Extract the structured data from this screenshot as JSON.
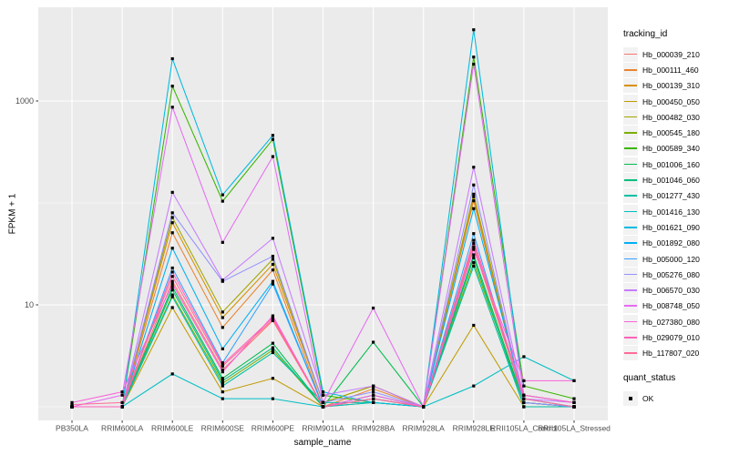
{
  "figure": {
    "background": "#FFFFFF",
    "panel_bg": "#EBEBEB",
    "grid_color": "#FFFFFF",
    "tick_color": "#333333",
    "tick_label_color": "#4D4D4D",
    "axis_title_color": "#000000",
    "legend_key_bg": "#F2F2F2",
    "point_color": "#000000"
  },
  "chart_data": {
    "type": "line",
    "title": "",
    "xlabel": "sample_name",
    "ylabel": "FPKM + 1",
    "y_scale": "log10",
    "ylim": [
      0.85,
      6000
    ],
    "grid": true,
    "legend_position": "right",
    "legend_title": "tracking_id",
    "legend2_title": "quant_status",
    "legend2_items": [
      {
        "label": "OK"
      }
    ],
    "y_ticks": [
      {
        "value": 10,
        "label": "10"
      },
      {
        "value": 1000,
        "label": "1000"
      }
    ],
    "y_minor_gridlines": [
      1,
      100
    ],
    "categories": [
      "PB350LA",
      "RRIM600LA",
      "RRIM600LE",
      "RRIM600SE",
      "RRIM600PE",
      "RRIM901LA",
      "RRIM928BA",
      "RRIM928LA",
      "RRIM928LE",
      "RRII105LA_Control",
      "RRII105LA_Stressed"
    ],
    "series": [
      {
        "name": "Hb_000039_210",
        "color": "#F8766D",
        "values": [
          1,
          1,
          17,
          2.3,
          7,
          1,
          1.3,
          1,
          37,
          1.2,
          1
        ]
      },
      {
        "name": "Hb_000111_460",
        "color": "#EA8331",
        "values": [
          1,
          1,
          51,
          6,
          22,
          1,
          1.5,
          1,
          105,
          1.1,
          1
        ]
      },
      {
        "name": "Hb_000139_310",
        "color": "#D89000",
        "values": [
          1,
          1,
          64,
          7.5,
          25,
          1.1,
          1.6,
          1,
          115,
          1.1,
          1
        ]
      },
      {
        "name": "Hb_000450_050",
        "color": "#C09B00",
        "values": [
          1,
          1,
          9.4,
          1.4,
          1.9,
          1,
          1.1,
          1,
          6.3,
          1,
          1
        ]
      },
      {
        "name": "Hb_000482_030",
        "color": "#A3A500",
        "values": [
          1,
          1,
          72,
          8.5,
          28,
          1.1,
          1.6,
          1,
          122,
          1.1,
          1
        ]
      },
      {
        "name": "Hb_000545_180",
        "color": "#7CAE00",
        "values": [
          1,
          1,
          12.5,
          1.7,
          3.6,
          1,
          1.2,
          1,
          26,
          1.1,
          1
        ]
      },
      {
        "name": "Hb_000589_340",
        "color": "#39B600",
        "values": [
          1,
          1,
          1400,
          104,
          420,
          1.3,
          1.1,
          1,
          2700,
          1.6,
          1.2
        ]
      },
      {
        "name": "Hb_001006_160",
        "color": "#00BB4E",
        "values": [
          1,
          1,
          15,
          1.9,
          4.2,
          1,
          4.3,
          1,
          31,
          1.1,
          1
        ]
      },
      {
        "name": "Hb_001046_060",
        "color": "#00BF7D",
        "values": [
          1,
          1,
          14,
          1.8,
          3.8,
          1,
          1.2,
          1,
          29,
          1,
          1
        ]
      },
      {
        "name": "Hb_001277_430",
        "color": "#00C1A3",
        "values": [
          1,
          1,
          12,
          1.6,
          3.4,
          1.1,
          1.1,
          1,
          24,
          1,
          1
        ]
      },
      {
        "name": "Hb_001416_130",
        "color": "#00BFC4",
        "values": [
          1,
          1,
          2.1,
          1.2,
          1.2,
          1,
          1.1,
          1,
          1.6,
          3.1,
          1.8
        ]
      },
      {
        "name": "Hb_001621_090",
        "color": "#00BAE0",
        "values": [
          1,
          1,
          2600,
          120,
          460,
          1.4,
          1.1,
          1,
          5000,
          1.3,
          1.1
        ]
      },
      {
        "name": "Hb_001892_080",
        "color": "#00B0F6",
        "values": [
          1,
          1,
          36,
          3.7,
          17,
          1,
          1.3,
          1,
          88,
          1.2,
          1
        ]
      },
      {
        "name": "Hb_005000_120",
        "color": "#35A2FF",
        "values": [
          1,
          1,
          23,
          2.7,
          16,
          1,
          1.2,
          1,
          50,
          1.1,
          1
        ]
      },
      {
        "name": "Hb_005276_080",
        "color": "#9590FF",
        "values": [
          1,
          1,
          80,
          17,
          30,
          1.1,
          1.4,
          1,
          150,
          1.1,
          1
        ]
      },
      {
        "name": "Hb_006570_030",
        "color": "#C77CFF",
        "values": [
          1,
          1,
          127,
          17.5,
          45,
          1.3,
          1.6,
          1,
          224,
          1.2,
          1.1
        ]
      },
      {
        "name": "Hb_008748_050",
        "color": "#E76BF3",
        "values": [
          1,
          1.3,
          870,
          41,
          285,
          1.1,
          9.3,
          1,
          2300,
          1.3,
          1.1
        ]
      },
      {
        "name": "Hb_027380_080",
        "color": "#FA62DB",
        "values": [
          1.1,
          1.4,
          16,
          2.2,
          7.8,
          1,
          1.3,
          1,
          35,
          1.8,
          1.8
        ]
      },
      {
        "name": "Hb_029079_010",
        "color": "#FF62BC",
        "values": [
          1,
          1,
          21,
          2.6,
          7.5,
          1,
          1.2,
          1,
          43,
          1.3,
          1.1
        ]
      },
      {
        "name": "Hb_117807_020",
        "color": "#FF6A98",
        "values": [
          1.05,
          1.1,
          19,
          2.5,
          7.2,
          1,
          1.2,
          1,
          40,
          1.2,
          1
        ]
      }
    ]
  }
}
